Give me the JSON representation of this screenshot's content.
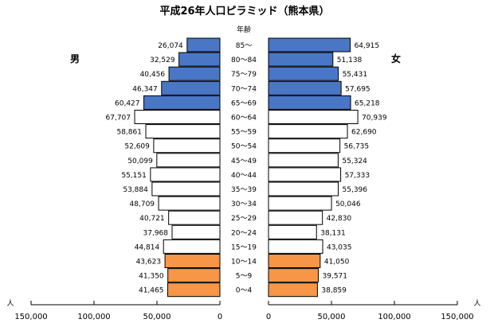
{
  "chart_data": {
    "type": "bar",
    "title": "平成26年人口ピラミッド（熊本県）",
    "age_header": "年齢",
    "male_label": "男",
    "female_label": "女",
    "unit_label": "人",
    "categories": [
      "85～",
      "80～84",
      "75～79",
      "70～74",
      "65～69",
      "60～64",
      "55～59",
      "50～54",
      "45～49",
      "40～44",
      "35～39",
      "30～34",
      "25～29",
      "20～24",
      "15～19",
      "10～14",
      "5～9",
      "0～4"
    ],
    "series": [
      {
        "name": "男",
        "values": [
          26074,
          32529,
          40456,
          46347,
          60427,
          67707,
          58861,
          52609,
          50099,
          55151,
          53884,
          48709,
          40721,
          37968,
          44814,
          43623,
          41350,
          41465
        ],
        "labels": [
          "26,074",
          "32,529",
          "40,456",
          "46,347",
          "60,427",
          "67,707",
          "58,861",
          "52,609",
          "50,099",
          "55,151",
          "53,884",
          "48,709",
          "40,721",
          "37,968",
          "44,814",
          "43,623",
          "41,350",
          "41,465"
        ]
      },
      {
        "name": "女",
        "values": [
          64915,
          51138,
          55431,
          57695,
          65218,
          70939,
          62690,
          56735,
          55324,
          57333,
          55396,
          50046,
          42830,
          38131,
          43035,
          41050,
          39571,
          38859
        ],
        "labels": [
          "64,915",
          "51,138",
          "55,431",
          "57,695",
          "65,218",
          "70,939",
          "62,690",
          "56,735",
          "55,324",
          "57,333",
          "55,396",
          "50,046",
          "42,830",
          "38,131",
          "43,035",
          "41,050",
          "39,571",
          "38,859"
        ]
      }
    ],
    "group_colors": {
      "elderly": "#4a76c6",
      "working": "#ffffff",
      "youth": "#f79646"
    },
    "male_axis": {
      "ticks": [
        "150,000",
        "100,000",
        "50,000",
        "0"
      ],
      "max": 150000
    },
    "female_axis": {
      "ticks": [
        "0",
        "50,000",
        "100,000",
        "150,000"
      ],
      "max": 150000
    }
  }
}
